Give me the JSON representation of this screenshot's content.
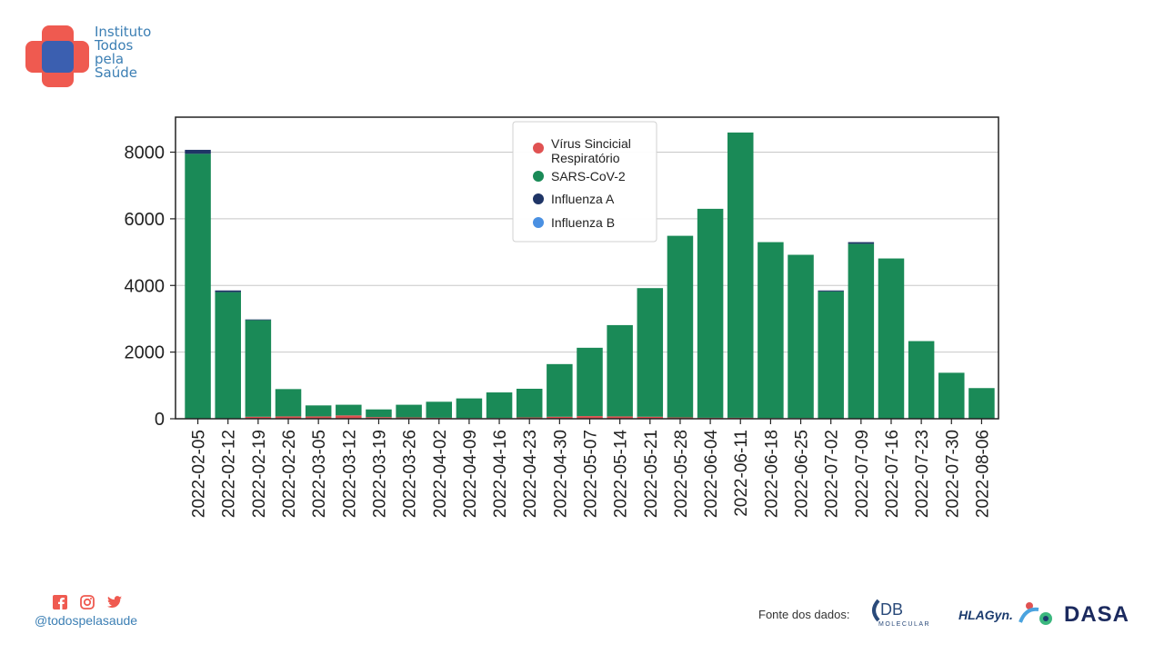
{
  "brand": {
    "name_lines": [
      "Instituto",
      "Todos",
      "pela",
      "Saúde"
    ],
    "colors": {
      "red": "#ef5a50",
      "blue": "#3c7fb4",
      "overlap": "#3b5fb0"
    }
  },
  "chart_data": {
    "type": "bar",
    "stacked": true,
    "categories": [
      "2022-02-05",
      "2022-02-12",
      "2022-02-19",
      "2022-02-26",
      "2022-03-05",
      "2022-03-12",
      "2022-03-19",
      "2022-03-26",
      "2022-04-02",
      "2022-04-09",
      "2022-04-16",
      "2022-04-23",
      "2022-04-30",
      "2022-05-07",
      "2022-05-14",
      "2022-05-21",
      "2022-05-28",
      "2022-06-04",
      "2022-06-11",
      "2022-06-18",
      "2022-06-25",
      "2022-07-02",
      "2022-07-09",
      "2022-07-16",
      "2022-07-23",
      "2022-07-30",
      "2022-08-06"
    ],
    "series": [
      {
        "name": "Vírus Sincicial Respiratório",
        "color": "#e05252",
        "values": [
          0,
          0,
          60,
          70,
          70,
          100,
          50,
          40,
          30,
          20,
          20,
          40,
          60,
          80,
          70,
          60,
          40,
          30,
          30,
          20,
          20,
          10,
          10,
          10,
          0,
          0,
          0
        ]
      },
      {
        "name": "SARS-CoV-2",
        "color": "#1a8a57",
        "values": [
          7950,
          3800,
          2900,
          820,
          330,
          320,
          230,
          380,
          480,
          590,
          770,
          860,
          1580,
          2050,
          2740,
          3860,
          5450,
          6270,
          8560,
          5280,
          4900,
          3810,
          5240,
          4800,
          2330,
          1380,
          920
        ]
      },
      {
        "name": "Influenza A",
        "color": "#1f3566",
        "values": [
          120,
          50,
          20,
          0,
          0,
          0,
          0,
          0,
          0,
          0,
          0,
          0,
          0,
          0,
          0,
          0,
          0,
          0,
          0,
          0,
          0,
          30,
          50,
          0,
          0,
          0,
          0
        ]
      },
      {
        "name": "Influenza B",
        "color": "#4a90e2",
        "values": [
          0,
          0,
          0,
          0,
          0,
          0,
          0,
          0,
          0,
          0,
          0,
          0,
          0,
          0,
          0,
          0,
          0,
          0,
          0,
          0,
          0,
          0,
          0,
          0,
          0,
          0,
          0
        ]
      }
    ],
    "yticks": [
      0,
      2000,
      4000,
      6000,
      8000
    ],
    "ylim": [
      0,
      9050
    ],
    "grid": true,
    "legend_position": "top-center"
  },
  "footer": {
    "handle": "@todospelasaude",
    "social_icons": [
      "facebook-icon",
      "instagram-icon",
      "twitter-icon"
    ],
    "source_label": "Fonte dos dados:",
    "partners": {
      "db_main": "DB",
      "db_sub": "MOLECULAR",
      "hla": "HLAGyn.",
      "dasa": "DASA"
    }
  }
}
